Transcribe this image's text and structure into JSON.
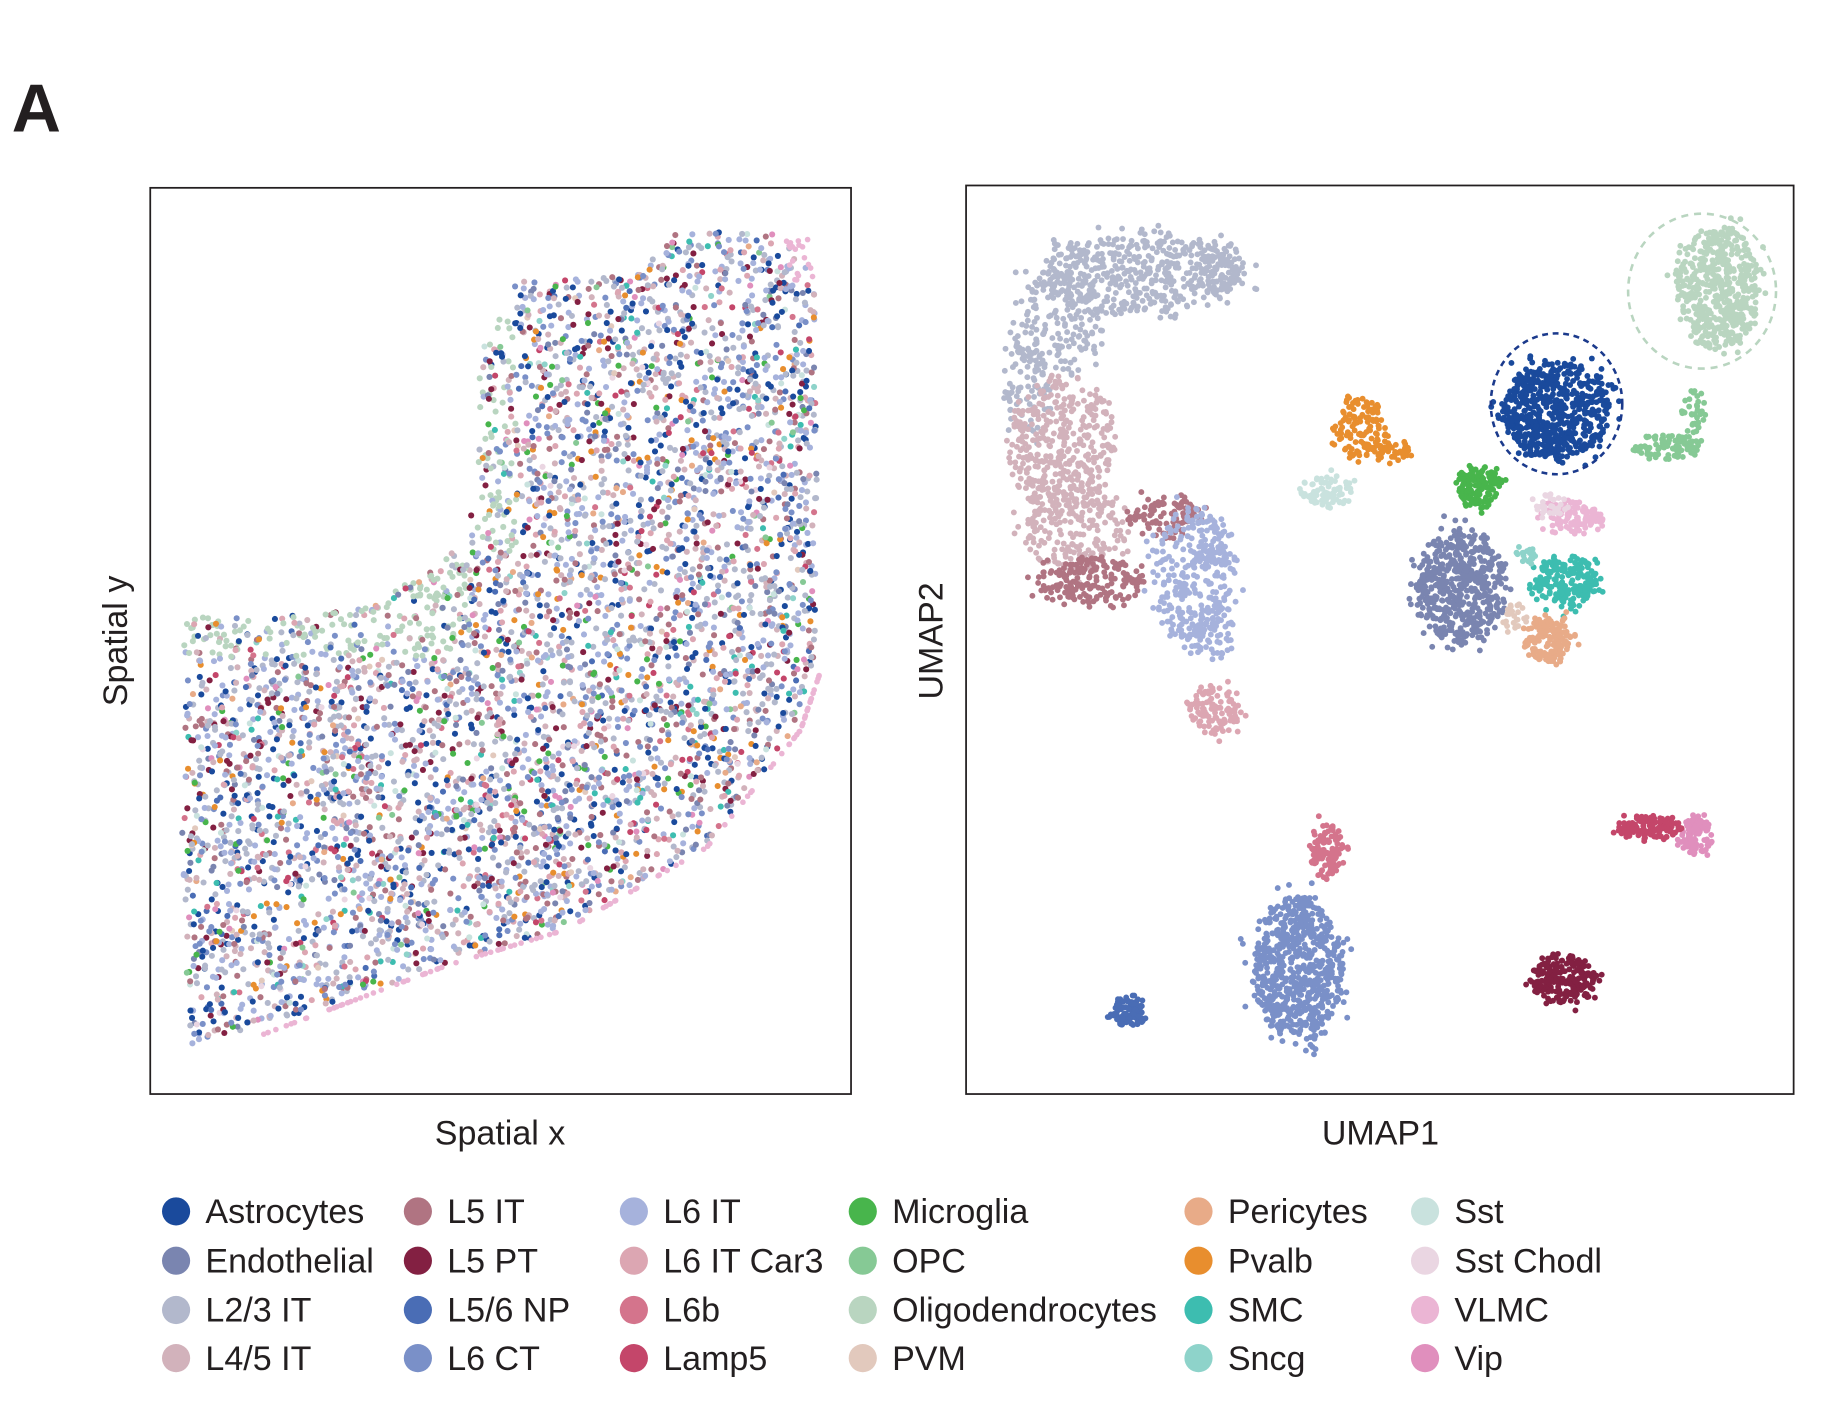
{
  "panel_label": "A",
  "chart_data": [
    {
      "type": "scatter",
      "xlabel": "Spatial x",
      "ylabel": "Spatial y",
      "grid": false,
      "ticks": false
    },
    {
      "type": "scatter",
      "xlabel": "UMAP1",
      "ylabel": "UMAP2",
      "grid": false,
      "ticks": false,
      "highlighted_clusters": [
        {
          "category": "Astrocytes",
          "outline": "dashed",
          "color": "#1b3a8c"
        },
        {
          "category": "Oligodendrocytes",
          "outline": "dashed",
          "color": "#b9d5c0"
        }
      ]
    }
  ],
  "legend": {
    "placement": "bottom",
    "items": [
      {
        "label": "Astrocytes",
        "color": "#1a4a9c"
      },
      {
        "label": "Endothelial",
        "color": "#7a85b0"
      },
      {
        "label": "L2/3 IT",
        "color": "#b2b8cc"
      },
      {
        "label": "L4/5 IT",
        "color": "#d2b2bb"
      },
      {
        "label": "L5 IT",
        "color": "#b07482"
      },
      {
        "label": "L5 PT",
        "color": "#832042"
      },
      {
        "label": "L5/6 NP",
        "color": "#4a6db5"
      },
      {
        "label": "L6 CT",
        "color": "#7a90c8"
      },
      {
        "label": "L6 IT",
        "color": "#a6b2dc"
      },
      {
        "label": "L6 IT Car3",
        "color": "#dca6b2"
      },
      {
        "label": "L6b",
        "color": "#d4748c"
      },
      {
        "label": "Lamp5",
        "color": "#c4466a"
      },
      {
        "label": "Microglia",
        "color": "#48b54c"
      },
      {
        "label": "OPC",
        "color": "#86c995"
      },
      {
        "label": "Oligodendrocytes",
        "color": "#b9d5c0"
      },
      {
        "label": "PVM",
        "color": "#e2c9bd"
      },
      {
        "label": "Pericytes",
        "color": "#e8ab88"
      },
      {
        "label": "Pvalb",
        "color": "#e88e2e"
      },
      {
        "label": "SMC",
        "color": "#3dbdb0"
      },
      {
        "label": "Sncg",
        "color": "#8ed3ca"
      },
      {
        "label": "Sst",
        "color": "#c9e2de"
      },
      {
        "label": "Sst Chodl",
        "color": "#ead6e2"
      },
      {
        "label": "VLMC",
        "color": "#ebb5d4"
      },
      {
        "label": "Vip",
        "color": "#e08fbd"
      }
    ]
  }
}
